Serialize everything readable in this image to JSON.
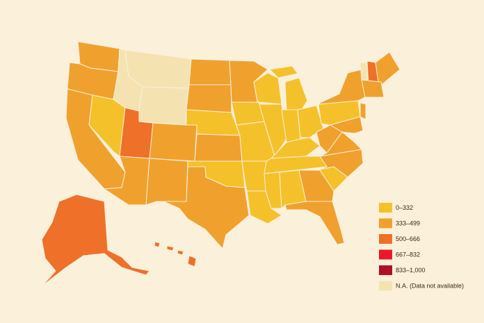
{
  "legend": [
    {
      "label": "0–332",
      "color": "#f5c12b"
    },
    {
      "label": "333–499",
      "color": "#f0a12d"
    },
    {
      "label": "500–666",
      "color": "#ef7028"
    },
    {
      "label": "667–832",
      "color": "#e81a2a"
    },
    {
      "label": "833–1,000",
      "color": "#b10f26"
    },
    {
      "label": "N.A. (Data not available)",
      "color": "#f4e3b1"
    }
  ]
}
